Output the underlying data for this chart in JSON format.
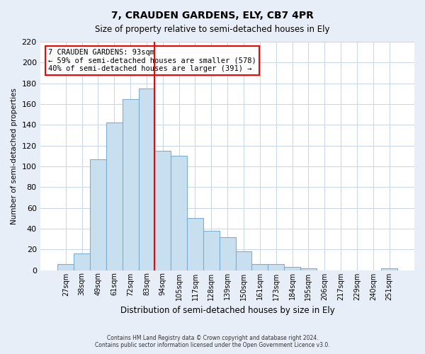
{
  "title": "7, CRAUDEN GARDENS, ELY, CB7 4PR",
  "subtitle": "Size of property relative to semi-detached houses in Ely",
  "xlabel": "Distribution of semi-detached houses by size in Ely",
  "ylabel": "Number of semi-detached properties",
  "categories": [
    "27sqm",
    "38sqm",
    "49sqm",
    "61sqm",
    "72sqm",
    "83sqm",
    "94sqm",
    "105sqm",
    "117sqm",
    "128sqm",
    "139sqm",
    "150sqm",
    "161sqm",
    "173sqm",
    "184sqm",
    "195sqm",
    "206sqm",
    "217sqm",
    "229sqm",
    "240sqm",
    "251sqm"
  ],
  "values": [
    6,
    16,
    107,
    142,
    165,
    175,
    115,
    110,
    50,
    38,
    32,
    18,
    6,
    6,
    3,
    2,
    0,
    0,
    0,
    0,
    2
  ],
  "bar_color": "#c8dff0",
  "bar_edge_color": "#7aafd4",
  "vline_x_index": 6,
  "vline_color": "red",
  "ylim": [
    0,
    220
  ],
  "yticks": [
    0,
    20,
    40,
    60,
    80,
    100,
    120,
    140,
    160,
    180,
    200,
    220
  ],
  "annotation_title": "7 CRAUDEN GARDENS: 93sqm",
  "annotation_line1": "← 59% of semi-detached houses are smaller (578)",
  "annotation_line2": "40% of semi-detached houses are larger (391) →",
  "footer_line1": "Contains HM Land Registry data © Crown copyright and database right 2024.",
  "footer_line2": "Contains public sector information licensed under the Open Government Licence v3.0.",
  "background_color": "#e8eef8",
  "plot_background_color": "#ffffff",
  "grid_color": "#c8d4e8"
}
